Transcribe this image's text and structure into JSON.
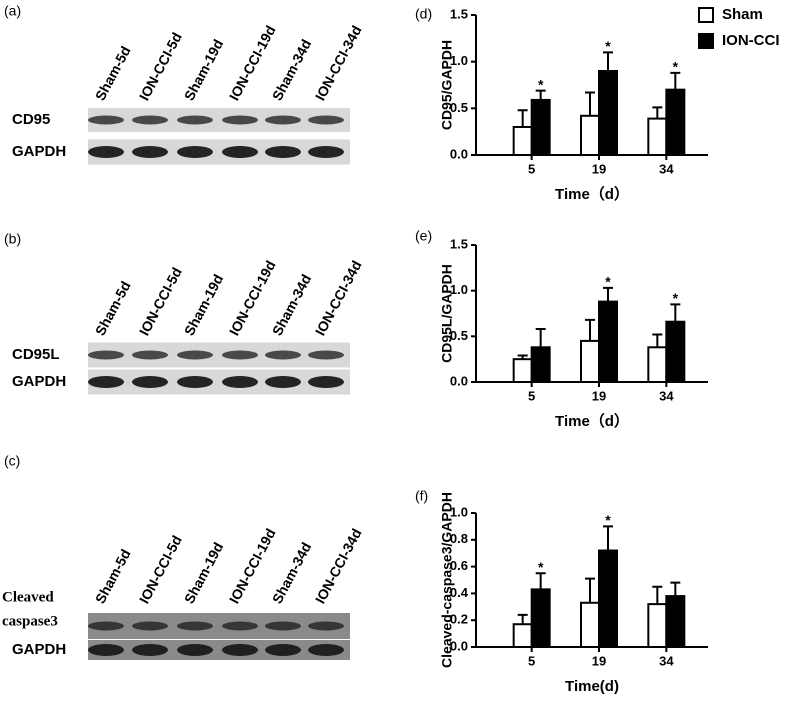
{
  "blots": [
    {
      "label": "(a)",
      "lanes": [
        "Sham-5d",
        "ION-CCI-5d",
        "Sham-19d",
        "ION-CCI-19d",
        "Sham-34d",
        "ION-CCI-34d"
      ],
      "rows": [
        [
          "CD95"
        ],
        [
          "GAPDH"
        ]
      ]
    },
    {
      "label": "(b)",
      "lanes": [
        "Sham-5d",
        "ION-CCI-5d",
        "Sham-19d",
        "ION-CCI-19d",
        "Sham-34d",
        "ION-CCI-34d"
      ],
      "rows": [
        [
          "CD95L"
        ],
        [
          "GAPDH"
        ]
      ]
    },
    {
      "label": "(c)",
      "lanes": [
        "Sham-5d",
        "ION-CCI-5d",
        "Sham-19d",
        "ION-CCI-19d",
        "Sham-34d",
        "ION-CCI-34d"
      ],
      "rows": [
        [
          "Cleaved",
          "caspase3"
        ],
        [
          "GAPDH"
        ]
      ]
    }
  ],
  "chart_data": [
    {
      "type": "bar",
      "label": "(d)",
      "ylabel": "CD95/GAPDH",
      "xlabel": "Time（d）",
      "categories": [
        "5",
        "19",
        "34"
      ],
      "series": [
        {
          "name": "Sham",
          "color": "#ffffff",
          "values": [
            0.3,
            0.42,
            0.39
          ],
          "errors": [
            0.18,
            0.25,
            0.12
          ],
          "marks": [
            null,
            null,
            null
          ]
        },
        {
          "name": "ION-CCI",
          "color": "#000000",
          "values": [
            0.59,
            0.9,
            0.7
          ],
          "errors": [
            0.1,
            0.2,
            0.18
          ],
          "marks": [
            "*",
            "*",
            "*"
          ]
        }
      ],
      "ylim": [
        0,
        1.5
      ],
      "yticks": [
        {
          "value": 0,
          "label": "0.0"
        },
        {
          "value": 0.5,
          "label": "0.5"
        },
        {
          "value": 1.0,
          "label": "1.0"
        },
        {
          "value": 1.5,
          "label": "1.5"
        }
      ],
      "legend": "upper right"
    },
    {
      "type": "bar",
      "label": "(e)",
      "ylabel": "CD95L/GAPDH",
      "xlabel": "Time（d）",
      "categories": [
        "5",
        "19",
        "34"
      ],
      "series": [
        {
          "name": "Sham",
          "color": "#ffffff",
          "values": [
            0.25,
            0.45,
            0.38
          ],
          "errors": [
            0.04,
            0.23,
            0.14
          ],
          "marks": [
            null,
            null,
            null
          ]
        },
        {
          "name": "ION-CCI",
          "color": "#000000",
          "values": [
            0.38,
            0.88,
            0.66
          ],
          "errors": [
            0.2,
            0.15,
            0.19
          ],
          "marks": [
            null,
            "*",
            "*"
          ]
        }
      ],
      "ylim": [
        0,
        1.5
      ],
      "yticks": [
        {
          "value": 0,
          "label": "0.0"
        },
        {
          "value": 0.5,
          "label": "0.5"
        },
        {
          "value": 1.0,
          "label": "1.0"
        },
        {
          "value": 1.5,
          "label": "1.5"
        }
      ]
    },
    {
      "type": "bar",
      "label": "(f)",
      "ylabel": "Cleaved-caspase3/GAPDH",
      "xlabel": "Time(d)",
      "categories": [
        "5",
        "19",
        "34"
      ],
      "series": [
        {
          "name": "Sham",
          "color": "#ffffff",
          "values": [
            0.17,
            0.33,
            0.32
          ],
          "errors": [
            0.07,
            0.18,
            0.13
          ],
          "marks": [
            null,
            null,
            null
          ]
        },
        {
          "name": "ION-CCI",
          "color": "#000000",
          "values": [
            0.43,
            0.72,
            0.38
          ],
          "errors": [
            0.12,
            0.18,
            0.1
          ],
          "marks": [
            "*",
            "*",
            null
          ]
        }
      ],
      "ylim": [
        0,
        1.0
      ],
      "yticks": [
        {
          "value": 0,
          "label": "0.0"
        },
        {
          "value": 0.2,
          "label": "0.2"
        },
        {
          "value": 0.4,
          "label": "0.4"
        },
        {
          "value": 0.6,
          "label": "0.6"
        },
        {
          "value": 0.8,
          "label": "0.8"
        },
        {
          "value": 1.0,
          "label": "1.0"
        }
      ]
    }
  ]
}
